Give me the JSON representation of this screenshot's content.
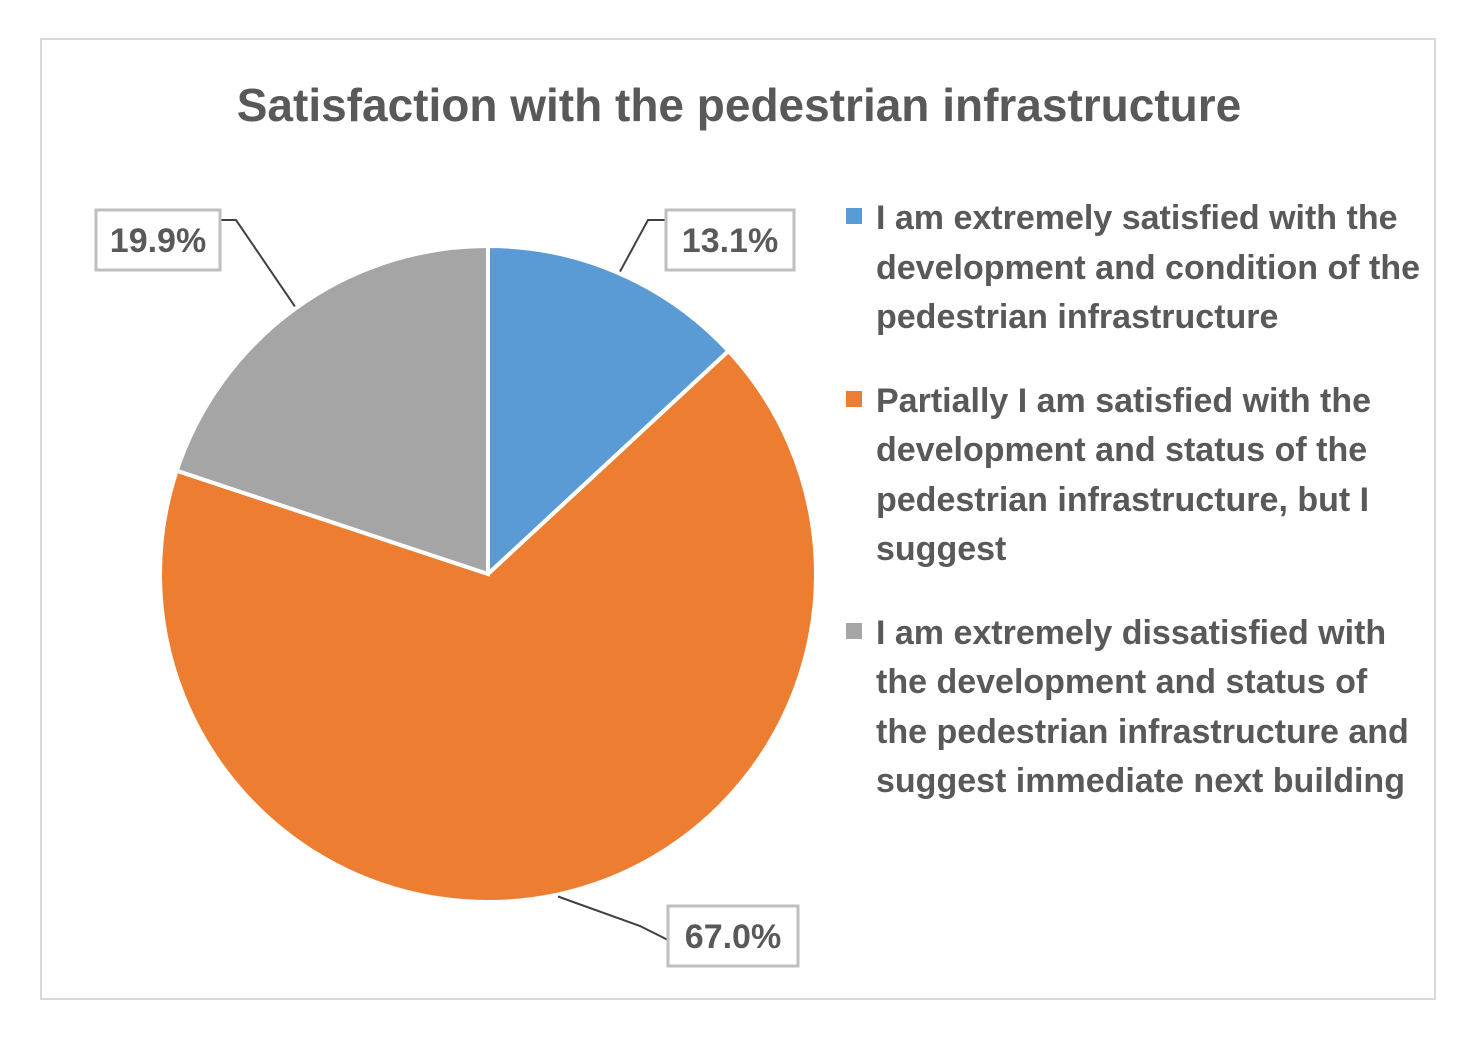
{
  "chart_data": {
    "type": "pie",
    "title": "Satisfaction with the pedestrian infrastructure",
    "slices": [
      {
        "label": "I am extremely satisfied with the development and condition of the pedestrian infrastructure",
        "value": 13.1,
        "data_label": "13.1%",
        "color": "#5b9bd5"
      },
      {
        "label": "Partially I am satisfied with the development and status of the pedestrian infrastructure, but I suggest",
        "value": 67.0,
        "data_label": "67.0%",
        "color": "#ed7d31"
      },
      {
        "label": "I am extremely dissatisfied with the development and status of the pedestrian infrastructure and suggest immediate next building",
        "value": 19.9,
        "data_label": "19.9%",
        "color": "#a5a5a5"
      }
    ],
    "legend_position": "right",
    "data_labels": "outside with leader lines"
  }
}
